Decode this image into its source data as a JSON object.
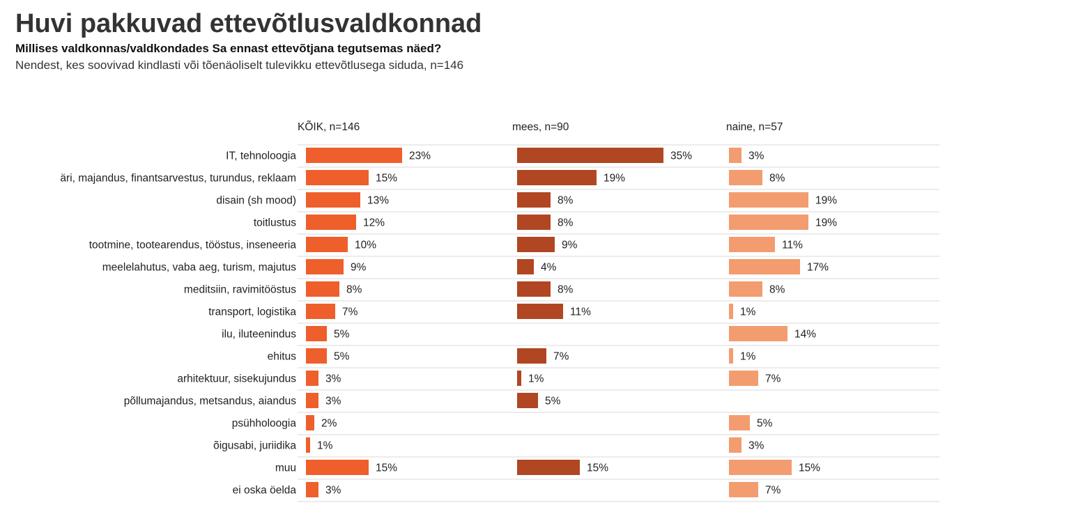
{
  "title": "Huvi pakkuvad ettevõtlusvaldkonnad",
  "subtitle": "Millises valdkonnas/valdkondades Sa ennast ettevõtjana tegutsemas näed?",
  "note": "Nendest, kes soovivad kindlasti või tõenäoliselt tulevikku ettevõtlusega siduda, n=146",
  "colors": {
    "koik": "#ee5f2b",
    "mees": "#b04622",
    "naine": "#f39c6f",
    "gridline": "#d9d9d9",
    "text": "#222222"
  },
  "chart_data": {
    "type": "bar",
    "orientation": "horizontal",
    "unit": "%",
    "categories": [
      "IT, tehnoloogia",
      "äri, majandus, finantsarvestus, turundus, reklaam",
      "disain (sh mood)",
      "toitlustus",
      "tootmine, tootearendus, tööstus, inseneeria",
      "meelelahutus, vaba aeg, turism, majutus",
      "meditsiin, ravimitööstus",
      "transport, logistika",
      "ilu, iluteenindus",
      "ehitus",
      "arhitektuur, sisekujundus",
      "põllumajandus, metsandus, aiandus",
      "psühholoogia",
      "õigusabi, juriidika",
      "muu",
      "ei oska öelda"
    ],
    "series": [
      {
        "key": "koik",
        "name": "KÕIK, n=146",
        "values": [
          23,
          15,
          13,
          12,
          10,
          9,
          8,
          7,
          5,
          5,
          3,
          3,
          2,
          1,
          15,
          3
        ]
      },
      {
        "key": "mees",
        "name": "mees, n=90",
        "values": [
          35,
          19,
          8,
          8,
          9,
          4,
          8,
          11,
          null,
          7,
          1,
          5,
          null,
          null,
          15,
          null
        ]
      },
      {
        "key": "naine",
        "name": "naine, n=57",
        "values": [
          3,
          8,
          19,
          19,
          11,
          17,
          8,
          1,
          14,
          1,
          7,
          null,
          5,
          3,
          15,
          7
        ]
      }
    ]
  }
}
